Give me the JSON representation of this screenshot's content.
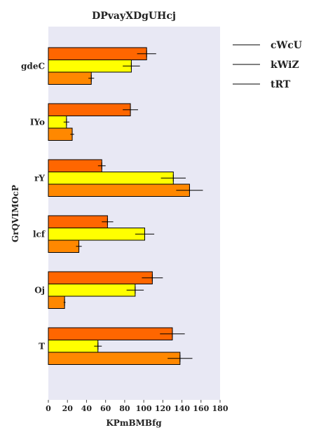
{
  "chart_data": {
    "type": "bar",
    "orientation": "horizontal",
    "title": "DPvayXDgUHcj",
    "xlabel": "KPmBMBfg",
    "ylabel": "GrQVIMOcP",
    "xlim": [
      0,
      180
    ],
    "xticks": [
      0,
      20,
      40,
      60,
      80,
      100,
      120,
      140,
      160,
      180
    ],
    "categories": [
      "gdeC",
      "IYo",
      "rY",
      "lcf",
      "Oj",
      "T"
    ],
    "series": [
      {
        "name": "cWcU",
        "color": "#ff6600",
        "values": [
          103,
          86,
          56,
          62,
          109,
          130
        ],
        "errors": [
          10,
          8,
          4,
          6,
          11,
          13
        ]
      },
      {
        "name": "kWiZ",
        "color": "#ffff00",
        "values": [
          87,
          19,
          131,
          101,
          91,
          52
        ],
        "errors": [
          9,
          3,
          13,
          10,
          9,
          4
        ]
      },
      {
        "name": "tRT",
        "color": "#ff8800",
        "values": [
          45,
          25,
          148,
          32,
          17,
          138
        ],
        "errors": [
          3,
          2,
          14,
          3,
          1,
          13
        ]
      }
    ],
    "legend": {
      "position": "right"
    },
    "background": "#e8e8f4",
    "grid": false
  }
}
